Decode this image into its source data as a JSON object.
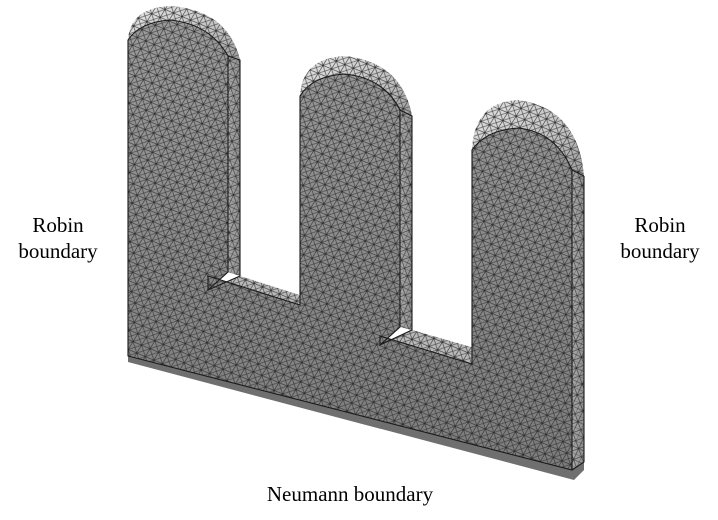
{
  "labels": {
    "left": {
      "line1": "Robin",
      "line2": "boundary"
    },
    "right": {
      "line1": "Robin",
      "line2": "boundary"
    },
    "bottom": "Neumann boundary"
  },
  "colors": {
    "background": "#ffffff",
    "front_face": "#8a8a8a",
    "side_face": "#a9a9a9",
    "top_face": "#c8c8c8",
    "mesh_lines": "#2a2a2a",
    "text": "#000000"
  }
}
